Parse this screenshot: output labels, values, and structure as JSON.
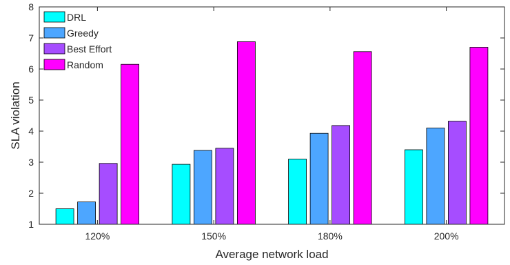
{
  "chart_data": {
    "type": "bar",
    "title": "",
    "xlabel": "Average network load",
    "ylabel": "SLA violation",
    "categories": [
      "120%",
      "150%",
      "180%",
      "200%"
    ],
    "ylim": [
      1,
      8
    ],
    "yticks": [
      1,
      2,
      3,
      4,
      5,
      6,
      7,
      8
    ],
    "grid": false,
    "legend_position": "top-left",
    "series": [
      {
        "name": "DRL",
        "color": "#00ffff",
        "values": [
          1.5,
          2.93,
          3.1,
          3.4
        ]
      },
      {
        "name": "Greedy",
        "color": "#4da6ff",
        "values": [
          1.72,
          3.38,
          3.93,
          4.1
        ]
      },
      {
        "name": "Best Effort",
        "color": "#a64dff",
        "values": [
          2.96,
          3.45,
          4.18,
          4.32
        ]
      },
      {
        "name": "Random",
        "color": "#ff00ff",
        "values": [
          6.15,
          6.88,
          6.56,
          6.7
        ]
      }
    ]
  }
}
